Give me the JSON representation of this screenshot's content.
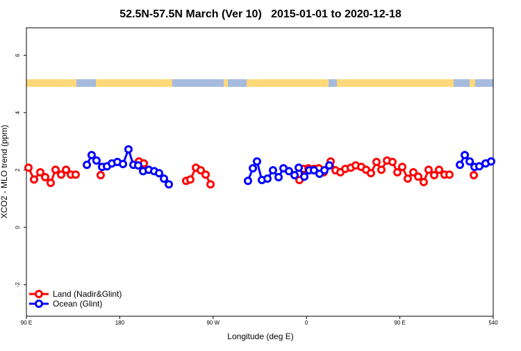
{
  "chart_data": {
    "type": "line",
    "title": "52.5N-57.5N March (Ver 10)   2015-01-01 to 2020-12-18",
    "x_label": "Longitude (deg E)",
    "y_label": "XCO2 - MLO trend (ppm)",
    "xlim": [
      90,
      540
    ],
    "ylim": [
      -3.1,
      6.96
    ],
    "xticks": [
      {
        "value": 90,
        "label": "90 E"
      },
      180,
      {
        "value": 270,
        "label": "90 W"
      },
      {
        "value": 360,
        "label": "0"
      },
      {
        "value": 450,
        "label": "90 E"
      },
      540
    ],
    "yticks": [
      -2,
      0,
      2,
      4,
      6
    ],
    "legend": "bottomleft",
    "series": [
      {
        "name": "Land (Nadir&Glint)",
        "color": "#ff0000",
        "x": [
          92.0,
          97.4,
          103.4,
          108.1,
          113.4,
          118.1,
          123.5,
          128.2,
          132.9,
          137.5,
          null,
          161.6,
          null,
          198.5,
          203.2,
          null,
          244.0,
          248.0,
          253.4,
          258.1,
          262.8,
          267.5,
          null,
          353.2,
          357.2,
          361.9,
          367.2,
          371.9,
          376.6,
          383.3,
          388.0,
          392.7,
          397.4,
          402.7,
          407.4,
          412.8,
          417.5,
          422.1,
          427.5,
          432.2,
          437.6,
          442.9,
          447.6,
          452.3,
          457.6,
          463.0,
          467.7,
          473.0,
          477.7,
          483.1,
          487.8,
          493.1,
          497.8,
          null,
          521.3
        ],
        "values": [
          2.08,
          1.67,
          1.92,
          1.75,
          1.55,
          2.01,
          1.84,
          2.01,
          1.84,
          1.84,
          null,
          1.82,
          null,
          2.3,
          2.23,
          null,
          1.62,
          1.67,
          2.08,
          1.99,
          1.84,
          1.5,
          null,
          1.65,
          2.04,
          2.06,
          2.04,
          2.06,
          1.92,
          2.3,
          1.99,
          1.92,
          2.04,
          2.08,
          2.16,
          2.11,
          2.01,
          1.89,
          2.28,
          2.01,
          2.33,
          2.28,
          1.92,
          2.11,
          1.7,
          1.92,
          1.77,
          1.58,
          2.01,
          1.82,
          2.01,
          1.84,
          1.84,
          null,
          1.82
        ]
      },
      {
        "name": "Ocean (Glint)",
        "color": "#0000ff",
        "x": [
          148.3,
          152.9,
          157.6,
          163.0,
          167.7,
          172.4,
          177.7,
          183.1,
          188.4,
          193.1,
          197.8,
          202.5,
          207.9,
          213.2,
          217.9,
          222.6,
          227.3,
          null,
          303.6,
          308.3,
          312.3,
          317.0,
          322.4,
          327.7,
          333.1,
          337.8,
          343.1,
          348.5,
          352.5,
          357.9,
          362.6,
          367.2,
          372.6,
          377.3,
          382.0,
          null,
          507.9,
          512.6,
          517.3,
          522.0,
          526.6,
          532.7,
          538.0
        ],
        "values": [
          2.18,
          2.52,
          2.33,
          2.11,
          2.13,
          2.23,
          2.28,
          2.21,
          2.72,
          2.18,
          2.16,
          1.96,
          2.01,
          1.96,
          1.89,
          1.7,
          1.5,
          null,
          1.62,
          2.06,
          2.3,
          1.65,
          1.7,
          1.99,
          1.75,
          2.06,
          1.96,
          1.82,
          2.08,
          1.77,
          1.99,
          1.99,
          1.87,
          1.99,
          2.16,
          null,
          2.18,
          2.52,
          2.3,
          2.11,
          2.13,
          2.23,
          2.3
        ]
      }
    ]
  }
}
